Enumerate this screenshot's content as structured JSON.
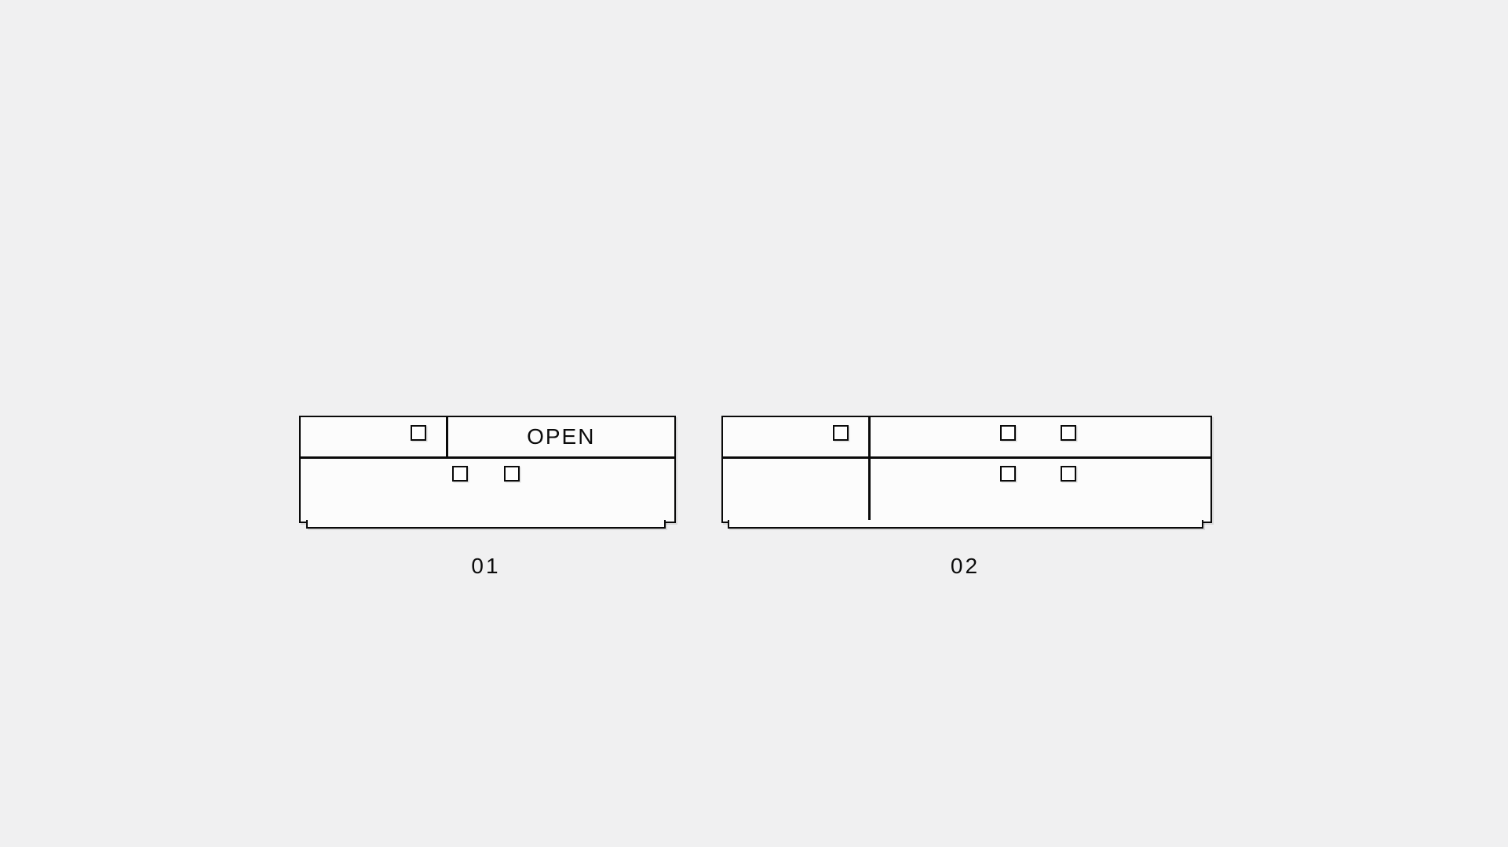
{
  "drawing": {
    "background_color": "#f0f0f1",
    "line_color": "#0a0a0a",
    "panel_fill_color": "#fcfcfc",
    "cabinets": [
      {
        "label": "01",
        "compartment_label": "OPEN"
      },
      {
        "label": "02"
      }
    ]
  }
}
